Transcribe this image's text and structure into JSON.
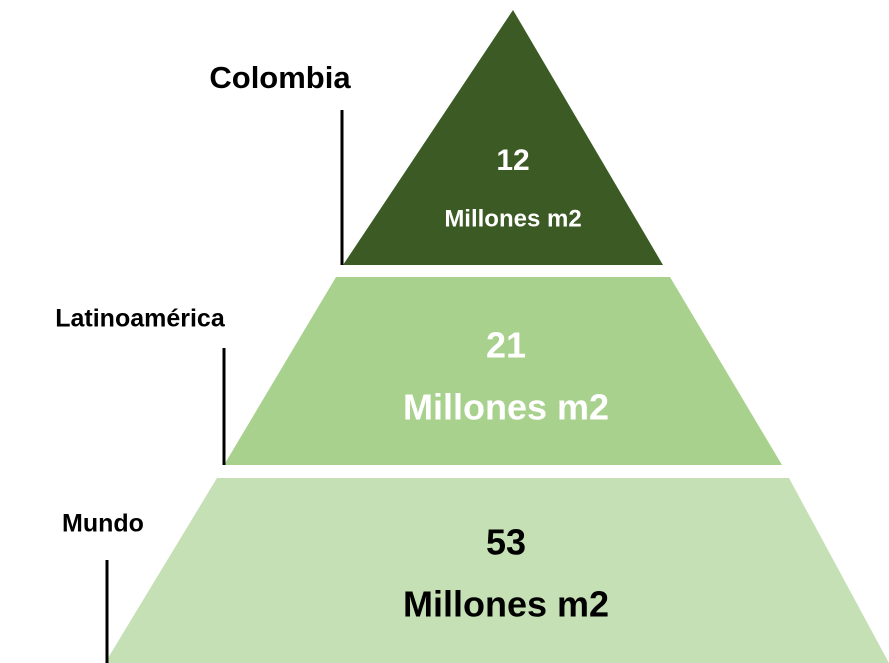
{
  "levels": [
    {
      "label": "Colombia",
      "value": "12",
      "unit": "Millones m2"
    },
    {
      "label": "Latinoamérica",
      "value": "21",
      "unit": "Millones m2"
    },
    {
      "label": "Mundo",
      "value": "53",
      "unit": "Millones m2"
    }
  ]
}
